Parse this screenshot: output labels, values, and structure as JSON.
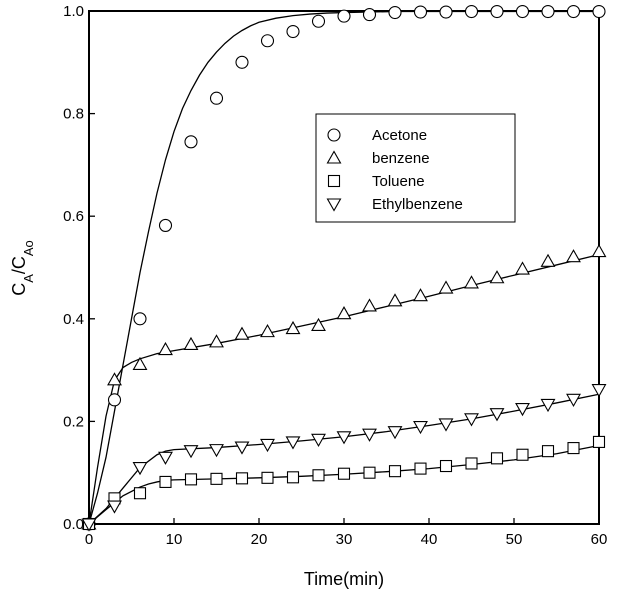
{
  "chart_data": {
    "type": "scatter",
    "title": "",
    "xlabel": "Time(min)",
    "ylabel_main": "C",
    "ylabel_sub1": "A",
    "ylabel_sep": "/C",
    "ylabel_sub2": "Ao",
    "xlim": [
      0,
      60
    ],
    "ylim": [
      0,
      1.0
    ],
    "xticks": [
      0,
      10,
      20,
      30,
      40,
      50,
      60
    ],
    "yticks": [
      0.0,
      0.2,
      0.4,
      0.6,
      0.8,
      1.0
    ],
    "x_tick_labels": [
      "0",
      "10",
      "20",
      "30",
      "40",
      "50",
      "60"
    ],
    "y_tick_labels": [
      "0.0",
      "0.2",
      "0.4",
      "0.6",
      "0.8",
      "1.0"
    ],
    "grid": false,
    "legend_position": "upper-right-center",
    "series": [
      {
        "name": "Acetone",
        "marker": "circle",
        "x": [
          0,
          3,
          6,
          9,
          12,
          15,
          18,
          21,
          24,
          27,
          30,
          33,
          36,
          39,
          42,
          45,
          48,
          51,
          54,
          57,
          60
        ],
        "y": [
          0.0,
          0.242,
          0.4,
          0.582,
          0.745,
          0.83,
          0.9,
          0.942,
          0.96,
          0.98,
          0.99,
          0.993,
          0.997,
          0.998,
          0.998,
          0.999,
          0.999,
          0.999,
          0.999,
          0.999,
          0.999
        ],
        "fit_x": [
          0,
          1,
          2,
          3,
          4,
          5,
          6,
          7,
          8,
          9,
          10,
          11,
          12,
          13,
          14,
          15,
          16,
          17,
          18,
          19,
          20,
          22,
          24,
          26,
          28,
          30,
          33,
          36,
          40,
          45,
          50,
          55,
          60
        ],
        "fit_y": [
          0.0,
          0.06,
          0.13,
          0.22,
          0.31,
          0.4,
          0.49,
          0.57,
          0.645,
          0.71,
          0.765,
          0.81,
          0.845,
          0.875,
          0.9,
          0.92,
          0.937,
          0.951,
          0.962,
          0.971,
          0.978,
          0.986,
          0.991,
          0.994,
          0.996,
          0.997,
          0.998,
          0.999,
          0.999,
          0.999,
          0.999,
          0.999,
          0.999
        ]
      },
      {
        "name": "benzene",
        "marker": "triangle-up",
        "x": [
          0,
          3,
          6,
          9,
          12,
          15,
          18,
          21,
          24,
          27,
          30,
          33,
          36,
          39,
          42,
          45,
          48,
          51,
          54,
          57,
          60
        ],
        "y": [
          0.0,
          0.281,
          0.311,
          0.34,
          0.35,
          0.355,
          0.37,
          0.375,
          0.381,
          0.387,
          0.41,
          0.425,
          0.435,
          0.445,
          0.46,
          0.47,
          0.48,
          0.497,
          0.512,
          0.521,
          0.531
        ],
        "fit_x": [
          0,
          1,
          2,
          3,
          4,
          5,
          6,
          8,
          10,
          15,
          20,
          25,
          30,
          35,
          40,
          45,
          50,
          55,
          60
        ],
        "fit_y": [
          0.0,
          0.11,
          0.21,
          0.28,
          0.305,
          0.315,
          0.322,
          0.332,
          0.338,
          0.352,
          0.368,
          0.386,
          0.404,
          0.424,
          0.444,
          0.465,
          0.485,
          0.505,
          0.525
        ]
      },
      {
        "name": "Toluene",
        "marker": "square",
        "x": [
          0,
          3,
          6,
          9,
          12,
          15,
          18,
          21,
          24,
          27,
          30,
          33,
          36,
          39,
          42,
          45,
          48,
          51,
          54,
          57,
          60
        ],
        "y": [
          0.0,
          0.05,
          0.06,
          0.082,
          0.087,
          0.088,
          0.089,
          0.09,
          0.091,
          0.095,
          0.098,
          0.1,
          0.103,
          0.108,
          0.113,
          0.118,
          0.128,
          0.135,
          0.142,
          0.148,
          0.16
        ],
        "fit_x": [
          0,
          2,
          4,
          6,
          7,
          8,
          9,
          10,
          15,
          20,
          25,
          30,
          35,
          40,
          45,
          50,
          55,
          60
        ],
        "fit_y": [
          0.0,
          0.028,
          0.055,
          0.072,
          0.078,
          0.082,
          0.085,
          0.086,
          0.088,
          0.09,
          0.093,
          0.097,
          0.102,
          0.108,
          0.116,
          0.125,
          0.137,
          0.153
        ]
      },
      {
        "name": "Ethylbenzene",
        "marker": "triangle-down",
        "x": [
          0,
          3,
          6,
          9,
          12,
          15,
          18,
          21,
          24,
          27,
          30,
          33,
          36,
          39,
          42,
          45,
          48,
          51,
          54,
          57,
          60
        ],
        "y": [
          0.0,
          0.035,
          0.11,
          0.13,
          0.143,
          0.145,
          0.15,
          0.155,
          0.16,
          0.165,
          0.17,
          0.175,
          0.18,
          0.19,
          0.195,
          0.205,
          0.215,
          0.225,
          0.233,
          0.243,
          0.262
        ],
        "fit_x": [
          0,
          2,
          4,
          6,
          8,
          9,
          10,
          15,
          20,
          25,
          30,
          35,
          40,
          45,
          50,
          55,
          60
        ],
        "fit_y": [
          0.0,
          0.03,
          0.07,
          0.11,
          0.135,
          0.142,
          0.145,
          0.149,
          0.155,
          0.162,
          0.17,
          0.18,
          0.192,
          0.205,
          0.22,
          0.236,
          0.253
        ]
      }
    ]
  }
}
